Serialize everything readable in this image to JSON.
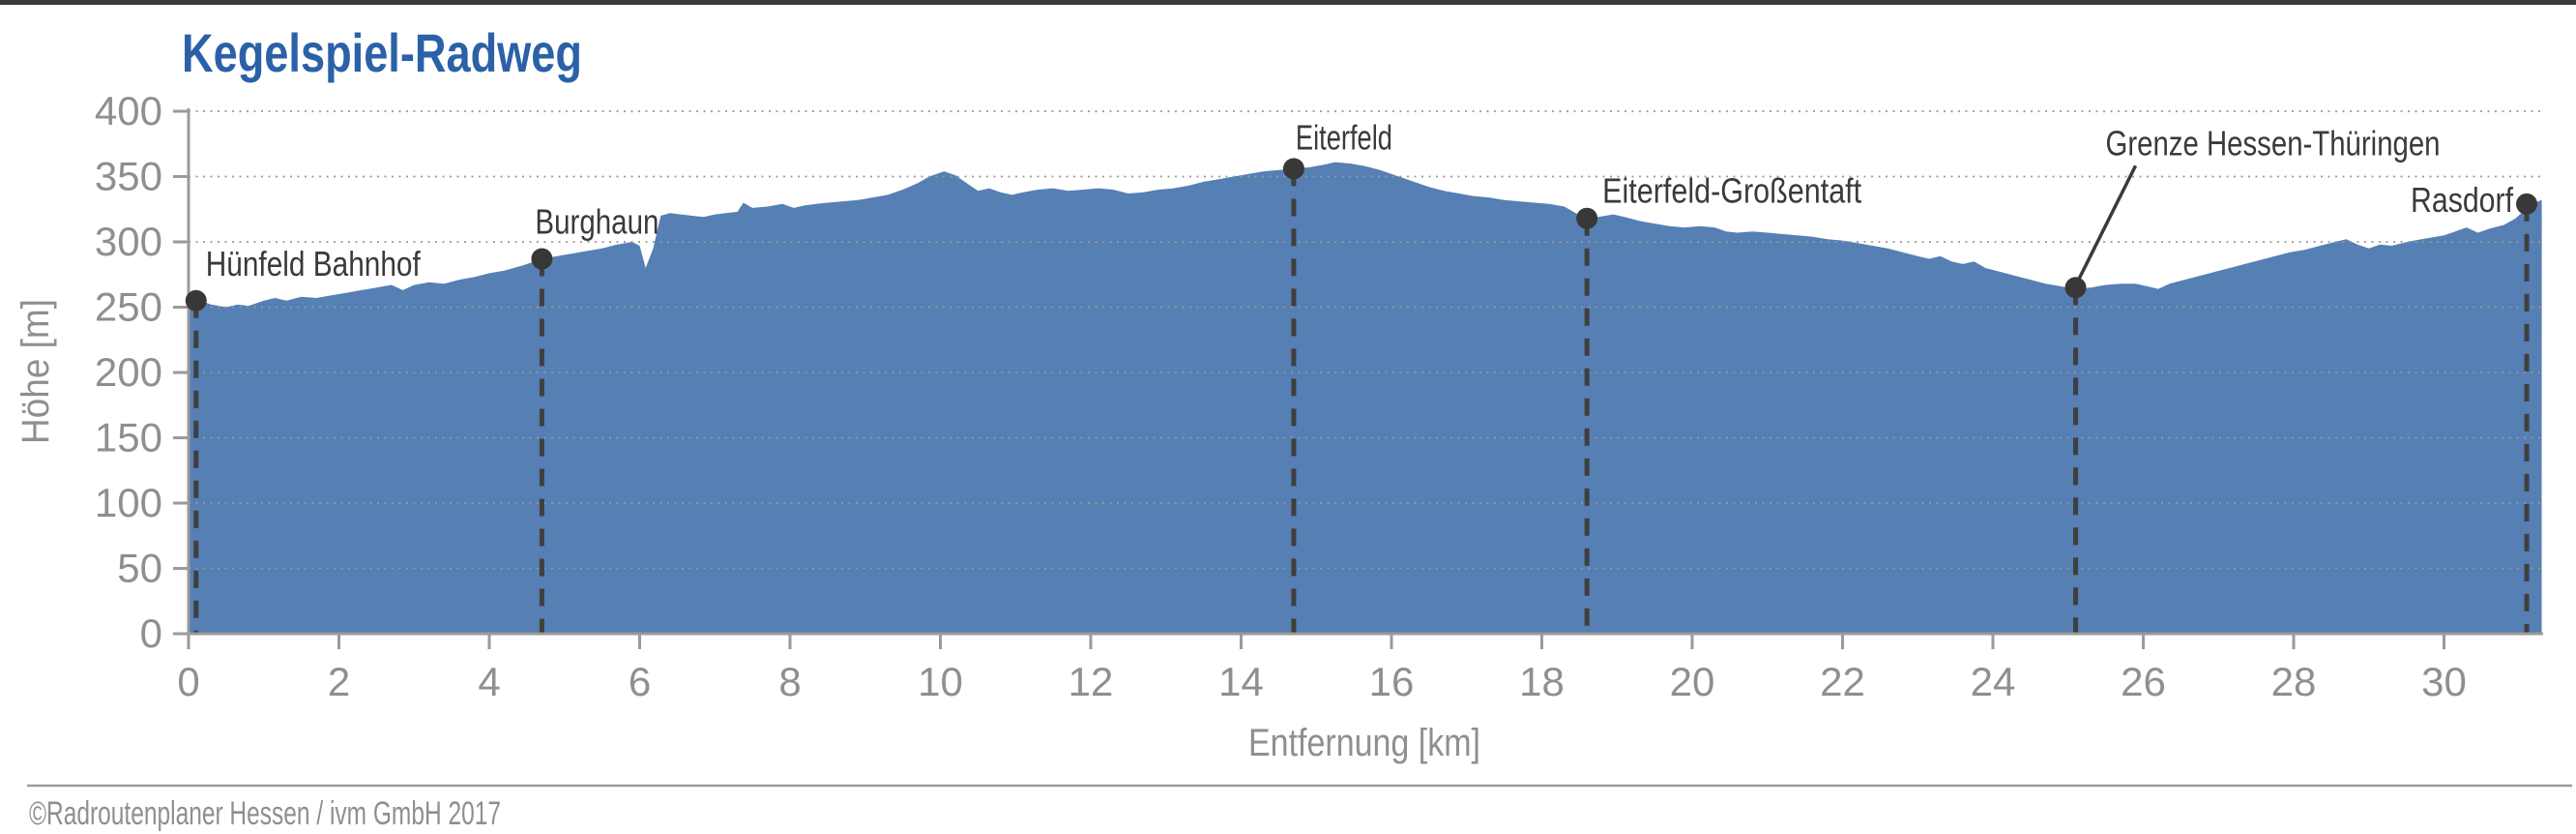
{
  "chart_data": {
    "type": "area",
    "title": "Kegelspiel-Radweg",
    "xlabel": "Entfernung [km]",
    "ylabel": "Höhe [m]",
    "xlim": [
      0,
      31.3
    ],
    "ylim": [
      0,
      400
    ],
    "xticks": [
      0,
      2,
      4,
      6,
      8,
      10,
      12,
      14,
      16,
      18,
      20,
      22,
      24,
      26,
      28,
      30
    ],
    "yticks": [
      0,
      50,
      100,
      150,
      200,
      250,
      300,
      350,
      400
    ],
    "grid": "horizontal-dotted",
    "legend": "none",
    "annotations": [
      {
        "label": "Hünfeld Bahnhof",
        "km": 0.1,
        "elevation_m": 255
      },
      {
        "label": "Burghaun",
        "km": 4.7,
        "elevation_m": 287
      },
      {
        "label": "Eiterfeld",
        "km": 14.7,
        "elevation_m": 356
      },
      {
        "label": "Eiterfeld-Großentaft",
        "km": 18.6,
        "elevation_m": 318
      },
      {
        "label": "Grenze Hessen-Thüringen",
        "km": 25.1,
        "elevation_m": 265
      },
      {
        "label": "Rasdorf",
        "km": 31.1,
        "elevation_m": 329
      }
    ],
    "profile": [
      [
        0.0,
        254
      ],
      [
        0.15,
        255
      ],
      [
        0.3,
        252
      ],
      [
        0.5,
        250
      ],
      [
        0.65,
        252
      ],
      [
        0.8,
        251
      ],
      [
        1.0,
        255
      ],
      [
        1.15,
        257
      ],
      [
        1.3,
        255
      ],
      [
        1.5,
        258
      ],
      [
        1.7,
        257
      ],
      [
        1.9,
        259
      ],
      [
        2.1,
        261
      ],
      [
        2.3,
        263
      ],
      [
        2.5,
        265
      ],
      [
        2.7,
        267
      ],
      [
        2.85,
        263
      ],
      [
        3.0,
        267
      ],
      [
        3.2,
        269
      ],
      [
        3.4,
        268
      ],
      [
        3.6,
        271
      ],
      [
        3.8,
        273
      ],
      [
        4.0,
        276
      ],
      [
        4.2,
        278
      ],
      [
        4.45,
        282
      ],
      [
        4.7,
        287
      ],
      [
        4.9,
        289
      ],
      [
        5.1,
        291
      ],
      [
        5.3,
        293
      ],
      [
        5.5,
        295
      ],
      [
        5.7,
        298
      ],
      [
        5.9,
        300
      ],
      [
        6.0,
        297
      ],
      [
        6.08,
        280
      ],
      [
        6.18,
        295
      ],
      [
        6.28,
        320
      ],
      [
        6.4,
        322
      ],
      [
        6.55,
        321
      ],
      [
        6.7,
        320
      ],
      [
        6.85,
        319
      ],
      [
        7.0,
        321
      ],
      [
        7.15,
        322
      ],
      [
        7.3,
        323
      ],
      [
        7.38,
        330
      ],
      [
        7.5,
        326
      ],
      [
        7.7,
        327
      ],
      [
        7.9,
        329
      ],
      [
        8.05,
        326
      ],
      [
        8.2,
        328
      ],
      [
        8.35,
        329
      ],
      [
        8.5,
        330
      ],
      [
        8.7,
        331
      ],
      [
        8.9,
        332
      ],
      [
        9.1,
        334
      ],
      [
        9.3,
        336
      ],
      [
        9.5,
        340
      ],
      [
        9.7,
        345
      ],
      [
        9.85,
        350
      ],
      [
        10.05,
        354
      ],
      [
        10.2,
        351
      ],
      [
        10.35,
        345
      ],
      [
        10.5,
        339
      ],
      [
        10.65,
        341
      ],
      [
        10.8,
        338
      ],
      [
        10.95,
        336
      ],
      [
        11.1,
        338
      ],
      [
        11.3,
        340
      ],
      [
        11.5,
        341
      ],
      [
        11.7,
        339
      ],
      [
        11.9,
        340
      ],
      [
        12.1,
        341
      ],
      [
        12.3,
        340
      ],
      [
        12.5,
        337
      ],
      [
        12.7,
        338
      ],
      [
        12.9,
        340
      ],
      [
        13.1,
        341
      ],
      [
        13.3,
        343
      ],
      [
        13.5,
        346
      ],
      [
        13.7,
        348
      ],
      [
        13.9,
        350
      ],
      [
        14.1,
        352
      ],
      [
        14.3,
        354
      ],
      [
        14.5,
        355
      ],
      [
        14.7,
        356
      ],
      [
        14.9,
        357
      ],
      [
        15.1,
        359
      ],
      [
        15.25,
        361
      ],
      [
        15.45,
        360
      ],
      [
        15.65,
        358
      ],
      [
        15.85,
        355
      ],
      [
        16.1,
        350
      ],
      [
        16.3,
        346
      ],
      [
        16.5,
        342
      ],
      [
        16.7,
        339
      ],
      [
        16.9,
        337
      ],
      [
        17.1,
        335
      ],
      [
        17.3,
        334
      ],
      [
        17.5,
        332
      ],
      [
        17.7,
        331
      ],
      [
        17.9,
        330
      ],
      [
        18.1,
        329
      ],
      [
        18.3,
        327
      ],
      [
        18.45,
        322
      ],
      [
        18.6,
        318
      ],
      [
        18.75,
        319
      ],
      [
        18.95,
        321
      ],
      [
        19.1,
        319
      ],
      [
        19.3,
        316
      ],
      [
        19.5,
        314
      ],
      [
        19.7,
        312
      ],
      [
        19.9,
        311
      ],
      [
        20.1,
        312
      ],
      [
        20.3,
        311
      ],
      [
        20.45,
        308
      ],
      [
        20.6,
        307
      ],
      [
        20.8,
        308
      ],
      [
        21.0,
        307
      ],
      [
        21.2,
        306
      ],
      [
        21.4,
        305
      ],
      [
        21.6,
        304
      ],
      [
        21.8,
        302
      ],
      [
        22.0,
        301
      ],
      [
        22.2,
        299
      ],
      [
        22.4,
        297
      ],
      [
        22.6,
        295
      ],
      [
        22.8,
        292
      ],
      [
        23.0,
        289
      ],
      [
        23.15,
        287
      ],
      [
        23.3,
        289
      ],
      [
        23.45,
        285
      ],
      [
        23.6,
        283
      ],
      [
        23.75,
        285
      ],
      [
        23.9,
        280
      ],
      [
        24.1,
        277
      ],
      [
        24.3,
        274
      ],
      [
        24.5,
        271
      ],
      [
        24.7,
        268
      ],
      [
        24.9,
        266
      ],
      [
        25.1,
        264
      ],
      [
        25.3,
        265
      ],
      [
        25.5,
        267
      ],
      [
        25.7,
        268
      ],
      [
        25.9,
        268
      ],
      [
        26.05,
        266
      ],
      [
        26.2,
        264
      ],
      [
        26.35,
        268
      ],
      [
        26.55,
        271
      ],
      [
        26.75,
        274
      ],
      [
        26.95,
        277
      ],
      [
        27.15,
        280
      ],
      [
        27.35,
        283
      ],
      [
        27.55,
        286
      ],
      [
        27.75,
        289
      ],
      [
        27.95,
        292
      ],
      [
        28.15,
        294
      ],
      [
        28.35,
        297
      ],
      [
        28.55,
        300
      ],
      [
        28.7,
        302
      ],
      [
        28.85,
        298
      ],
      [
        29.0,
        295
      ],
      [
        29.15,
        298
      ],
      [
        29.3,
        297
      ],
      [
        29.45,
        299
      ],
      [
        29.6,
        301
      ],
      [
        29.8,
        303
      ],
      [
        30.0,
        305
      ],
      [
        30.15,
        308
      ],
      [
        30.3,
        311
      ],
      [
        30.45,
        307
      ],
      [
        30.6,
        310
      ],
      [
        30.8,
        313
      ],
      [
        30.95,
        318
      ],
      [
        31.05,
        323
      ],
      [
        31.15,
        329
      ],
      [
        31.3,
        332
      ]
    ]
  },
  "footer": {
    "copyright": "©Radroutenplaner Hessen / ivm GmbH 2017"
  },
  "colors": {
    "area": "#567FB4",
    "title": "#2B61A7",
    "axis": "#9A9A9A",
    "tick_label": "#8F8F8F",
    "grid": "#999999",
    "annotation": "#3A3A3A",
    "marker": "#383838",
    "footer": "#8F8F8F",
    "top_border": "#3A3A3A"
  }
}
